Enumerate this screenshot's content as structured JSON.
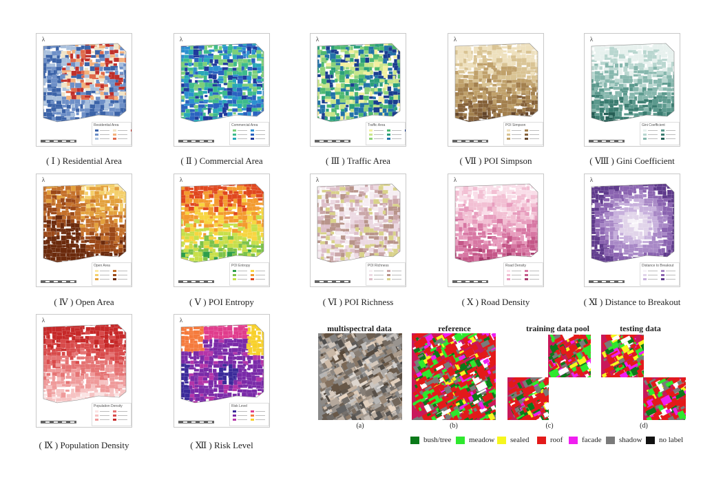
{
  "maps": [
    {
      "id": "residential",
      "caption": "( Ⅰ ) Residential Area",
      "legend_title": "Residential Area",
      "palette": [
        "#3b63a8",
        "#6d8fc7",
        "#a9c0dd",
        "#f0e4c8",
        "#f4b07a",
        "#e06a4a",
        "#c0302a"
      ]
    },
    {
      "id": "commercial",
      "caption": "( Ⅱ ) Commercial Area",
      "legend_title": "Commercial Area",
      "palette": [
        "#7ccf7a",
        "#3dbb8c",
        "#28a7b8",
        "#2c8fd0",
        "#2a63c0",
        "#1f3a9c"
      ]
    },
    {
      "id": "traffic",
      "caption": "( Ⅲ ) Traffic Area",
      "legend_title": "Traffic Area",
      "palette": [
        "#f3f0a0",
        "#c9e68a",
        "#8cd27a",
        "#4db870",
        "#2a9f7a",
        "#2272a8",
        "#1a3d8f"
      ]
    },
    {
      "id": "simpson",
      "caption": "( Ⅶ ) POI Simpson",
      "legend_title": "POI Simpson",
      "palette": [
        "#eee0bd",
        "#d9c393",
        "#bfa06a",
        "#a3804e",
        "#856139",
        "#63452a"
      ]
    },
    {
      "id": "gini",
      "caption": "( Ⅷ ) Gini Coefficient",
      "legend_title": "Gini Coefficient",
      "palette": [
        "#e7f1ee",
        "#b8d6cf",
        "#86b7ad",
        "#5b998d",
        "#3a7c70",
        "#245e55"
      ]
    },
    {
      "id": "open",
      "caption": "( Ⅳ ) Open Area",
      "legend_title": "Open Area",
      "palette": [
        "#fbe9a6",
        "#f4cf6a",
        "#e3a03c",
        "#c4702a",
        "#9a4818",
        "#6b2a0c"
      ]
    },
    {
      "id": "entropy",
      "caption": "( Ⅴ ) POI Entropy",
      "legend_title": "POI Entropy",
      "palette": [
        "#2e9e4c",
        "#7cc24a",
        "#c7df4a",
        "#f7d540",
        "#f39a2e",
        "#e0471e"
      ]
    },
    {
      "id": "richness",
      "caption": "( Ⅵ ) POI Richness",
      "legend_title": "POI Richness",
      "palette": [
        "#f6eef2",
        "#ecd9e2",
        "#ddbfc9",
        "#caa6a8",
        "#b8948a",
        "#d9d28a"
      ]
    },
    {
      "id": "road",
      "caption": "( Ⅹ ) Road Density",
      "legend_title": "Road Density",
      "palette": [
        "#f9dde8",
        "#f2bfd3",
        "#e79cbd",
        "#d777a3",
        "#c45788",
        "#a8396d"
      ]
    },
    {
      "id": "distance",
      "caption": "( Ⅺ ) Distance to Breakout",
      "legend_title": "Distance to Breakout",
      "palette": [
        "#f6f2f8",
        "#e1d4ea",
        "#c7b0dc",
        "#a888c6",
        "#8a63b0",
        "#5f3a8c"
      ]
    },
    {
      "id": "population",
      "caption": "( Ⅸ ) Population Density",
      "legend_title": "Population Density",
      "palette": [
        "#fbe3e3",
        "#f6c2c2",
        "#ef9a9a",
        "#e57373",
        "#d84a4a",
        "#c62828"
      ]
    },
    {
      "id": "risk",
      "caption": "( Ⅻ ) Risk Level",
      "legend_title": "Risk Level",
      "palette": [
        "#3a2a9a",
        "#7a2aa8",
        "#b434a8",
        "#e03c8c",
        "#f57a3c",
        "#f7d02a"
      ]
    }
  ],
  "segmentation": {
    "titles": {
      "multispectral": "multispectral data",
      "reference": "reference",
      "training": "training data pool",
      "testing": "testing data"
    },
    "subs": {
      "a": "(a)",
      "b": "(b)",
      "c": "(c)",
      "d": "(d)"
    },
    "legend": [
      {
        "label": "bush/tree",
        "color": "#0b7a1a"
      },
      {
        "label": "meadow",
        "color": "#2ee82e"
      },
      {
        "label": "sealed",
        "color": "#f6f61e"
      },
      {
        "label": "roof",
        "color": "#e31a1a"
      },
      {
        "label": "facade",
        "color": "#f01ef0"
      },
      {
        "label": "shadow",
        "color": "#7a7a7a"
      },
      {
        "label": "no label",
        "color": "#111111"
      }
    ]
  },
  "north_symbol": "λ"
}
